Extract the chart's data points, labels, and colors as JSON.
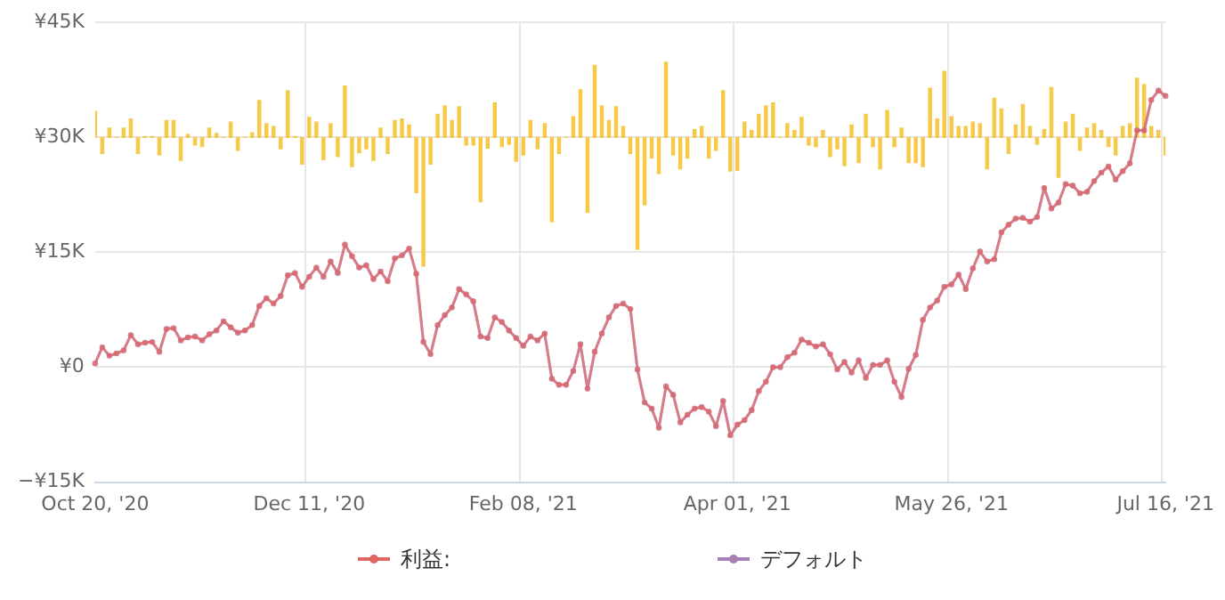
{
  "chart_data": {
    "type": "line",
    "categories": [
      "Oct 20, '20",
      null,
      null,
      null,
      null,
      null,
      null,
      null,
      null,
      null,
      null,
      null,
      null,
      null,
      null,
      null,
      null,
      null,
      null,
      null,
      null,
      null,
      null,
      null,
      null,
      null,
      null,
      null,
      null,
      null,
      "Dec 11, '20",
      null,
      null,
      null,
      null,
      null,
      null,
      null,
      null,
      null,
      null,
      null,
      null,
      null,
      null,
      null,
      null,
      null,
      null,
      null,
      null,
      null,
      null,
      null,
      null,
      null,
      null,
      null,
      null,
      null,
      "Feb 08, '21",
      null,
      null,
      null,
      null,
      null,
      null,
      null,
      null,
      null,
      null,
      null,
      null,
      null,
      null,
      null,
      null,
      null,
      null,
      null,
      null,
      null,
      null,
      null,
      null,
      null,
      null,
      null,
      null,
      null,
      "Apr 01, '21",
      null,
      null,
      null,
      null,
      null,
      null,
      null,
      null,
      null,
      null,
      null,
      null,
      null,
      null,
      null,
      null,
      null,
      null,
      null,
      null,
      null,
      null,
      null,
      null,
      null,
      null,
      null,
      null,
      null,
      "May 26, '21",
      null,
      null,
      null,
      null,
      null,
      null,
      null,
      null,
      null,
      null,
      null,
      null,
      null,
      null,
      null,
      null,
      null,
      null,
      null,
      null,
      null,
      null,
      null,
      null,
      null,
      null,
      null,
      null,
      null,
      "Jul 16, '21"
    ],
    "series": [
      {
        "type": "bar",
        "color": "#f7c948",
        "base": [
          30000,
          30000,
          30000,
          30000,
          30000,
          30000,
          30000,
          30000,
          30000,
          30000,
          30000,
          30000,
          30000,
          30000,
          30000,
          30000,
          30000,
          30000,
          30000,
          30000,
          30000,
          30000,
          30000,
          30000,
          30000,
          30000,
          30000,
          30000,
          30000,
          30000,
          30000,
          30000,
          30000,
          30000,
          30000,
          30000,
          30000,
          30000,
          30000,
          30000,
          30000,
          30000,
          30000,
          30000,
          30000,
          30000,
          30000,
          30000,
          30000,
          30000,
          30000,
          30000,
          30000,
          30000,
          30000,
          30000,
          30000,
          30000,
          30000,
          30000,
          30000,
          30000,
          30000,
          30000,
          30000,
          30000,
          30000,
          30000,
          30000,
          30000,
          30000,
          30000,
          30000,
          30000,
          30000,
          30000,
          30000,
          30000,
          30000,
          30000,
          30000,
          30000,
          30000,
          30000,
          30000,
          30000,
          30000,
          30000,
          30000,
          30000,
          30000,
          30000,
          30000,
          30000,
          30000,
          30000,
          30000,
          30000,
          30000,
          30000,
          30000,
          30000,
          30000,
          30000,
          30000,
          30000,
          30000,
          30000,
          30000,
          30000,
          30000,
          30000,
          30000,
          30000,
          30000,
          30000,
          30000,
          30000,
          30000,
          30000,
          30000,
          30000,
          30000,
          30000,
          30000,
          30000,
          30000,
          30000,
          30000,
          30000,
          30000,
          30000,
          30000,
          30000,
          30000,
          30000,
          30000,
          30000,
          30000,
          30000,
          30000,
          30000,
          30000,
          30000,
          30000,
          30000,
          30000,
          30000,
          30000,
          30000,
          30000
        ],
        "values": [
          3400,
          -2100,
          1200,
          0,
          1200,
          2400,
          -2100,
          100,
          100,
          -2300,
          2200,
          2200,
          -3000,
          400,
          -1000,
          -1200,
          1200,
          500,
          0,
          2000,
          -1700,
          0,
          600,
          4800,
          1800,
          1400,
          -1500,
          6100,
          100,
          -3500,
          2600,
          2000,
          -2900,
          1800,
          -2500,
          6700,
          -3800,
          -2000,
          -1500,
          -3000,
          1200,
          -2100,
          2200,
          2400,
          1600,
          -7200,
          -16800,
          -3500,
          3000,
          4100,
          2200,
          4000,
          -1000,
          -1000,
          -8400,
          -1400,
          4500,
          -1200,
          -900,
          -3100,
          -2300,
          2200,
          -1500,
          1800,
          -11000,
          -2100,
          0,
          2700,
          6200,
          -9800,
          9400,
          4100,
          2200,
          4000,
          1400,
          -2100,
          -14600,
          -8800,
          -2700,
          -4700,
          9800,
          -2300,
          -4100,
          -2700,
          1000,
          1400,
          -2700,
          -1700,
          6100,
          -4400,
          -4300,
          2000,
          900,
          3000,
          4100,
          4500,
          0,
          1800,
          900,
          2600,
          -1000,
          -1200,
          900,
          -2500,
          -1500,
          -3700,
          1600,
          -3300,
          3000,
          -1200,
          -4100,
          3500,
          -1200,
          1200,
          -3300,
          -3300,
          -3800,
          6400,
          2400,
          8600,
          2700,
          1400,
          1400,
          2000,
          1800,
          -4100,
          5100,
          3700,
          -2100,
          1600,
          4300,
          1400,
          -900,
          1000,
          6500,
          -5200,
          2000,
          3000,
          -1700,
          1200,
          1800,
          900,
          -1200,
          -2300,
          1400,
          1800,
          7700,
          6900,
          1400,
          900,
          -2300
        ]
      },
      {
        "name": "利益:",
        "color": "#e06666",
        "values": [
          500,
          2600,
          1500,
          1800,
          2200,
          4200,
          3000,
          3200,
          3300,
          2000,
          5000,
          5100,
          3500,
          3900,
          4000,
          3500,
          4300,
          4800,
          6000,
          5200,
          4500,
          4800,
          5500,
          8000,
          9000,
          8300,
          9300,
          12000,
          12300,
          10500,
          11800,
          13000,
          11800,
          13800,
          12300,
          16000,
          14500,
          13000,
          13300,
          11500,
          12500,
          11200,
          14200,
          14600,
          15500,
          12200,
          3300,
          1700,
          5500,
          6800,
          7800,
          10200,
          9500,
          8600,
          4000,
          3800,
          6500,
          5900,
          4800,
          3800,
          2800,
          4000,
          3500,
          4400,
          -1500,
          -2300,
          -2300,
          -500,
          3000,
          -2800,
          2000,
          4400,
          6500,
          8000,
          8300,
          7600,
          -300,
          -4600,
          -5400,
          -7900,
          -2500,
          -3600,
          -7200,
          -6200,
          -5400,
          -5200,
          -5800,
          -7700,
          -4400,
          -8900,
          -7500,
          -6900,
          -5600,
          -3100,
          -1900,
          0,
          0,
          1300,
          1900,
          3600,
          3200,
          2700,
          3000,
          1700,
          -300,
          700,
          -700,
          900,
          -1400,
          300,
          300,
          900,
          -1900,
          -3900,
          -200,
          1600,
          6200,
          7800,
          8700,
          10500,
          10800,
          12100,
          10200,
          12900,
          15100,
          13800,
          14100,
          17600,
          18600,
          19400,
          19500,
          19000,
          19600,
          23400,
          20700,
          21500,
          23900,
          23700,
          22700,
          22900,
          24300,
          25400,
          26200,
          24500,
          25600,
          26600,
          30900,
          30900,
          34900,
          36100,
          35400
        ]
      },
      {
        "name": "デフォルト",
        "color": "#a77fb5",
        "values": [
          500,
          2600,
          1500,
          1800,
          2200,
          4200,
          3000,
          3200,
          3300,
          2000,
          5000,
          5100,
          3500,
          3900,
          4000,
          3500,
          4300,
          4800,
          6000,
          5200,
          4500,
          4800,
          5500,
          8000,
          9000,
          8300,
          9300,
          12000,
          12300,
          10500,
          11800,
          13000,
          11800,
          13800,
          12300,
          16000,
          14500,
          13000,
          13300,
          11500,
          12500,
          11200,
          14200,
          14600,
          15500,
          12200,
          3300,
          1700,
          5500,
          6800,
          7800,
          10200,
          9500,
          8600,
          4000,
          3800,
          6500,
          5900,
          4800,
          3800,
          2800,
          4000,
          3500,
          4400,
          -1500,
          -2300,
          -2300,
          -500,
          3000,
          -2800,
          2000,
          4400,
          6500,
          8000,
          8300,
          7600,
          -300,
          -4600,
          -5400,
          -7900,
          -2500,
          -3600,
          -7200,
          -6200,
          -5400,
          -5200,
          -5800,
          -7700,
          -4400,
          -8900,
          -7500,
          -6900,
          -5600,
          -3100,
          -1900,
          0,
          0,
          1300,
          1900,
          3600,
          3200,
          2700,
          3000,
          1700,
          -300,
          700,
          -700,
          900,
          -1400,
          300,
          300,
          900,
          -1900,
          -3900,
          -200,
          1600,
          6200,
          7800,
          8700,
          10500,
          10800,
          12100,
          10200,
          12900,
          15100,
          13800,
          14100,
          17600,
          18600,
          19400,
          19500,
          19000,
          19600,
          23400,
          20700,
          21500,
          23900,
          23700,
          22700,
          22900,
          24300,
          25400,
          26200,
          24500,
          25600,
          26600,
          30900,
          30900,
          34900,
          36100,
          35400
        ]
      }
    ],
    "ylim": [
      -15000,
      45000
    ],
    "yticks": [
      {
        "value": -15000,
        "label": "−¥15K"
      },
      {
        "value": 0,
        "label": "¥0"
      },
      {
        "value": 15000,
        "label": "¥15K"
      },
      {
        "value": 30000,
        "label": "¥30K"
      },
      {
        "value": 45000,
        "label": "¥45K"
      }
    ],
    "grid": true,
    "legend": "bottom",
    "marker": "circle",
    "line_style": "solid"
  }
}
